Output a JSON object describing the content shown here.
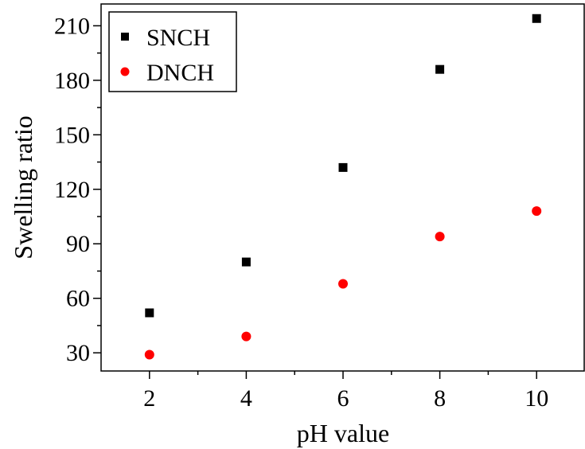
{
  "chart_data": {
    "type": "scatter",
    "title": "",
    "xlabel": "pH value",
    "ylabel": "Swelling ratio",
    "xlim": [
      1,
      11
    ],
    "ylim": [
      20,
      222
    ],
    "xticks": [
      2,
      4,
      6,
      8,
      10
    ],
    "yticks": [
      30,
      60,
      90,
      120,
      150,
      180,
      210
    ],
    "grid": false,
    "legend_position": "top-left",
    "series": [
      {
        "name": "SNCH",
        "marker": "square",
        "color": "#000000",
        "x": [
          2,
          4,
          6,
          8,
          10
        ],
        "y": [
          52,
          80,
          132,
          186,
          214
        ]
      },
      {
        "name": "DNCH",
        "marker": "circle",
        "color": "#ff0000",
        "x": [
          2,
          4,
          6,
          8,
          10
        ],
        "y": [
          29,
          39,
          68,
          94,
          108
        ]
      }
    ]
  }
}
